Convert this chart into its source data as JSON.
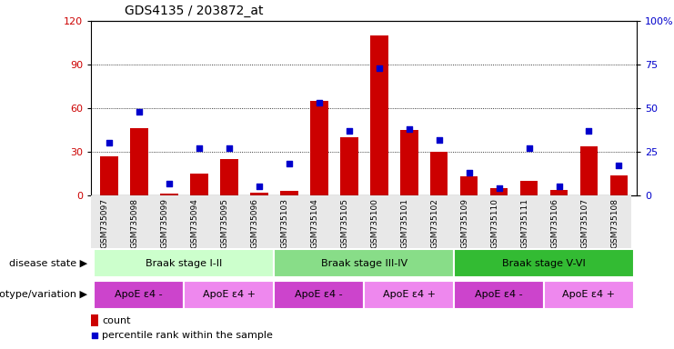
{
  "title": "GDS4135 / 203872_at",
  "samples": [
    "GSM735097",
    "GSM735098",
    "GSM735099",
    "GSM735094",
    "GSM735095",
    "GSM735096",
    "GSM735103",
    "GSM735104",
    "GSM735105",
    "GSM735100",
    "GSM735101",
    "GSM735102",
    "GSM735109",
    "GSM735110",
    "GSM735111",
    "GSM735106",
    "GSM735107",
    "GSM735108"
  ],
  "counts": [
    27,
    46,
    1,
    15,
    25,
    2,
    3,
    65,
    40,
    110,
    45,
    30,
    13,
    5,
    10,
    4,
    34,
    14
  ],
  "percentiles": [
    30,
    48,
    7,
    27,
    27,
    5,
    18,
    53,
    37,
    73,
    38,
    32,
    13,
    4,
    27,
    5,
    37,
    17
  ],
  "ylim_left": [
    0,
    120
  ],
  "ylim_right": [
    0,
    100
  ],
  "yticks_left": [
    0,
    30,
    60,
    90,
    120
  ],
  "yticks_right": [
    0,
    25,
    50,
    75,
    100
  ],
  "ytick_labels_right": [
    "0",
    "25",
    "50",
    "75",
    "100%"
  ],
  "bar_color": "#cc0000",
  "dot_color": "#0000cc",
  "grid_color": "#000000",
  "disease_state_groups": [
    {
      "label": "Braak stage I-II",
      "start": 0,
      "end": 6,
      "color": "#ccffcc"
    },
    {
      "label": "Braak stage III-IV",
      "start": 6,
      "end": 12,
      "color": "#88dd88"
    },
    {
      "label": "Braak stage V-VI",
      "start": 12,
      "end": 18,
      "color": "#33bb33"
    }
  ],
  "genotype_groups": [
    {
      "label": "ApoE ε4 -",
      "start": 0,
      "end": 3,
      "color": "#cc44cc"
    },
    {
      "label": "ApoE ε4 +",
      "start": 3,
      "end": 6,
      "color": "#ee88ee"
    },
    {
      "label": "ApoE ε4 -",
      "start": 6,
      "end": 9,
      "color": "#cc44cc"
    },
    {
      "label": "ApoE ε4 +",
      "start": 9,
      "end": 12,
      "color": "#ee88ee"
    },
    {
      "label": "ApoE ε4 -",
      "start": 12,
      "end": 15,
      "color": "#cc44cc"
    },
    {
      "label": "ApoE ε4 +",
      "start": 15,
      "end": 18,
      "color": "#ee88ee"
    }
  ],
  "left_label_color": "#cc0000",
  "right_label_color": "#0000cc",
  "background_color": "#ffffff",
  "legend_count_color": "#cc0000",
  "legend_pct_color": "#0000cc"
}
